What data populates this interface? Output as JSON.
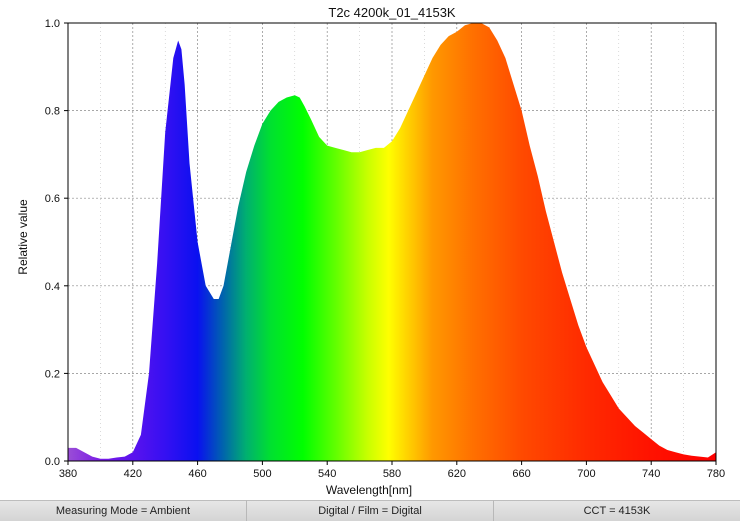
{
  "chart_data": {
    "type": "area",
    "title": "T2c 4200k_01_4153K",
    "xlabel": "Wavelength[nm]",
    "ylabel": "Relative value",
    "xlim": [
      380,
      780
    ],
    "ylim": [
      0,
      1
    ],
    "grid": true,
    "x_ticks": [
      380,
      420,
      460,
      500,
      540,
      580,
      620,
      660,
      700,
      740,
      780
    ],
    "y_ticks": [
      0.0,
      0.2,
      0.4,
      0.6,
      0.8,
      1.0
    ],
    "x_tick_labels": [
      "380",
      "420",
      "460",
      "500",
      "540",
      "580",
      "620",
      "660",
      "700",
      "740",
      "780"
    ],
    "y_tick_labels": [
      "0.0",
      "0.2",
      "0.4",
      "0.6",
      "0.8",
      "1.0"
    ],
    "fill": "spectral gradient",
    "x": [
      380,
      385,
      390,
      395,
      400,
      405,
      410,
      415,
      420,
      425,
      430,
      435,
      440,
      445,
      448,
      450,
      452,
      455,
      460,
      465,
      470,
      473,
      476,
      480,
      485,
      490,
      495,
      500,
      505,
      510,
      515,
      520,
      523,
      526,
      530,
      535,
      540,
      545,
      550,
      555,
      560,
      565,
      570,
      575,
      580,
      585,
      590,
      595,
      600,
      605,
      610,
      615,
      620,
      625,
      630,
      635,
      640,
      645,
      650,
      655,
      660,
      665,
      670,
      675,
      680,
      685,
      690,
      695,
      700,
      705,
      710,
      715,
      720,
      725,
      730,
      735,
      740,
      745,
      750,
      755,
      760,
      765,
      770,
      775,
      780
    ],
    "y": [
      0.03,
      0.03,
      0.02,
      0.01,
      0.005,
      0.005,
      0.008,
      0.01,
      0.02,
      0.06,
      0.2,
      0.45,
      0.75,
      0.92,
      0.96,
      0.94,
      0.86,
      0.68,
      0.5,
      0.4,
      0.37,
      0.37,
      0.4,
      0.48,
      0.58,
      0.66,
      0.72,
      0.77,
      0.8,
      0.82,
      0.83,
      0.835,
      0.83,
      0.81,
      0.78,
      0.74,
      0.72,
      0.715,
      0.71,
      0.705,
      0.705,
      0.71,
      0.715,
      0.715,
      0.73,
      0.76,
      0.8,
      0.84,
      0.88,
      0.92,
      0.95,
      0.97,
      0.98,
      0.995,
      1.0,
      1.0,
      0.99,
      0.96,
      0.92,
      0.86,
      0.8,
      0.72,
      0.65,
      0.57,
      0.5,
      0.43,
      0.37,
      0.31,
      0.26,
      0.22,
      0.18,
      0.15,
      0.12,
      0.1,
      0.08,
      0.065,
      0.05,
      0.035,
      0.025,
      0.02,
      0.015,
      0.012,
      0.01,
      0.008,
      0.02
    ],
    "gradient_stops": [
      {
        "x": 380,
        "color": "#9a4ed6"
      },
      {
        "x": 400,
        "color": "#7a1ce6"
      },
      {
        "x": 420,
        "color": "#5a12ee"
      },
      {
        "x": 440,
        "color": "#3510f2"
      },
      {
        "x": 460,
        "color": "#0a10f0"
      },
      {
        "x": 475,
        "color": "#0060b0"
      },
      {
        "x": 490,
        "color": "#00b070"
      },
      {
        "x": 505,
        "color": "#00e030"
      },
      {
        "x": 525,
        "color": "#00ff00"
      },
      {
        "x": 545,
        "color": "#60ff00"
      },
      {
        "x": 565,
        "color": "#c8ff00"
      },
      {
        "x": 578,
        "color": "#ffff00"
      },
      {
        "x": 590,
        "color": "#ffd000"
      },
      {
        "x": 605,
        "color": "#ff9800"
      },
      {
        "x": 630,
        "color": "#ff7000"
      },
      {
        "x": 660,
        "color": "#ff4a00"
      },
      {
        "x": 700,
        "color": "#ff2a00"
      },
      {
        "x": 740,
        "color": "#ff1200"
      },
      {
        "x": 780,
        "color": "#ff0000"
      }
    ]
  },
  "status_bar": {
    "measuring_mode": "Measuring Mode = Ambient",
    "digital_film": "Digital / Film = Digital",
    "cct": "CCT = 4153K"
  },
  "colors": {
    "grid": "#8a8a8a",
    "axis": "#000000",
    "status_bg": "#d9d9d9"
  }
}
